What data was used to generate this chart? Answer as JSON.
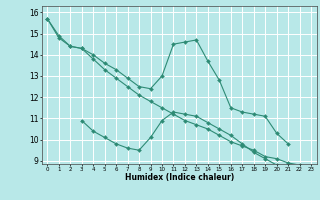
{
  "xlabel": "Humidex (Indice chaleur)",
  "x": [
    0,
    1,
    2,
    3,
    4,
    5,
    6,
    7,
    8,
    9,
    10,
    11,
    12,
    13,
    14,
    15,
    16,
    17,
    18,
    19,
    20,
    21,
    22,
    23
  ],
  "line1": [
    15.7,
    14.9,
    14.4,
    14.3,
    14.0,
    13.6,
    13.3,
    12.9,
    12.5,
    12.4,
    13.0,
    14.5,
    14.6,
    14.7,
    13.7,
    12.8,
    11.5,
    11.3,
    11.2,
    11.1,
    10.3,
    9.8,
    null,
    null
  ],
  "line2": [
    null,
    null,
    null,
    10.9,
    10.4,
    10.1,
    9.8,
    9.6,
    9.5,
    10.1,
    10.9,
    11.3,
    11.2,
    11.1,
    10.8,
    10.5,
    10.2,
    9.8,
    9.4,
    9.1,
    8.8,
    8.6,
    null,
    null
  ],
  "line3": [
    15.7,
    14.8,
    14.4,
    14.3,
    13.8,
    13.3,
    12.9,
    12.5,
    12.1,
    11.8,
    11.5,
    11.2,
    10.9,
    10.7,
    10.5,
    10.2,
    9.9,
    9.7,
    9.5,
    9.2,
    9.1,
    8.9,
    8.8,
    8.7
  ],
  "color": "#2e8b75",
  "bg_color": "#b8e8e8",
  "grid_color": "#ffffff",
  "ylim": [
    9,
    16
  ],
  "xlim": [
    -0.5,
    23.5
  ]
}
